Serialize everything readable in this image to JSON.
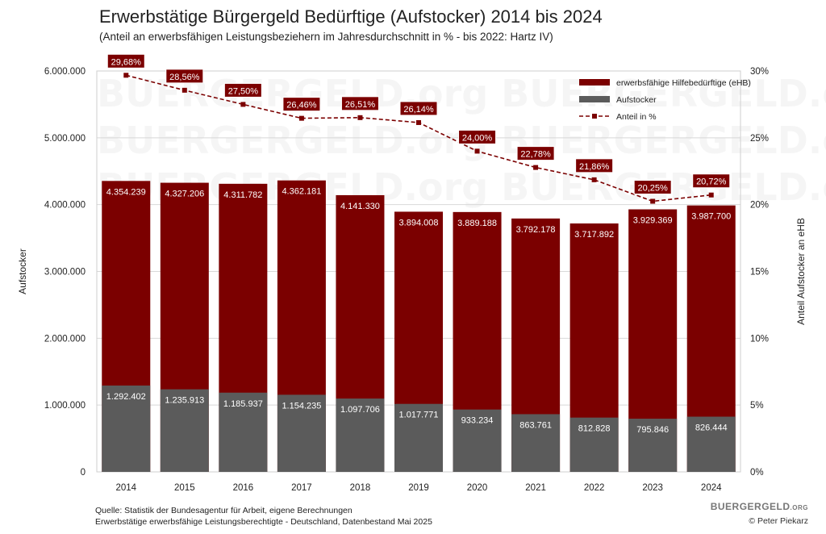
{
  "header": {
    "title": "Erwerbstätige Bürgergeld Bedürftige (Aufstocker) 2014 bis 2024",
    "subtitle": "(Anteil an erwerbsfähigen Leistungsbeziehern im Jahresdurchschnitt in % - bis 2022: Hartz IV)"
  },
  "footer": {
    "source": "Quelle: Statistik der Bundesagentur für Arbeit, eigene Berechnungen",
    "note": "Erwerbstätige erwerbsfähige Leistungsberechtigte - Deutschland, Datenbestand Mai 2025",
    "brand": "BUERGERGELD",
    "brand_suffix": ".ORG",
    "copyright": "© Peter Piekarz"
  },
  "watermark": "BUERGERGELD.org",
  "colors": {
    "ehb": "#7b0000",
    "aufstocker": "#5b5b5b",
    "line": "#7b0000"
  },
  "chart_data": {
    "type": "bar",
    "categories": [
      "2014",
      "2015",
      "2016",
      "2017",
      "2018",
      "2019",
      "2020",
      "2021",
      "2022",
      "2023",
      "2024"
    ],
    "series": [
      {
        "name": "erwerbsfähige Hilfebedürftige (eHB)",
        "kind": "bar",
        "axis": "left",
        "values": [
          4354239,
          4327206,
          4311782,
          4362181,
          4141330,
          3894008,
          3889188,
          3792178,
          3717892,
          3929369,
          3987700
        ],
        "labels": [
          "4.354.239",
          "4.327.206",
          "4.311.782",
          "4.362.181",
          "4.141.330",
          "3.894.008",
          "3.889.188",
          "3.792.178",
          "3.717.892",
          "3.929.369",
          "3.987.700"
        ]
      },
      {
        "name": "Aufstocker",
        "kind": "bar",
        "axis": "left",
        "values": [
          1292402,
          1235913,
          1185937,
          1154235,
          1097706,
          1017771,
          933234,
          863761,
          812828,
          795846,
          826444
        ],
        "labels": [
          "1.292.402",
          "1.235.913",
          "1.185.937",
          "1.154.235",
          "1.097.706",
          "1.017.771",
          "933.234",
          "863.761",
          "812.828",
          "795.846",
          "826.444"
        ]
      },
      {
        "name": "Anteil in %",
        "kind": "line",
        "axis": "right",
        "values": [
          29.68,
          28.56,
          27.5,
          26.46,
          26.51,
          26.14,
          24.0,
          22.78,
          21.86,
          20.25,
          20.72
        ],
        "labels": [
          "29,68%",
          "28,56%",
          "27,50%",
          "26,46%",
          "26,51%",
          "26,14%",
          "24,00%",
          "22,78%",
          "21,86%",
          "20,25%",
          "20,72%"
        ]
      }
    ],
    "ylabel": "Aufstocker",
    "y2label": "Anteil Aufstocker an eHB",
    "ylim": [
      0,
      6000000
    ],
    "y2lim": [
      0,
      30
    ],
    "yticks": [
      0,
      1000000,
      2000000,
      3000000,
      4000000,
      5000000,
      6000000
    ],
    "ytick_labels": [
      "0",
      "1.000.000",
      "2.000.000",
      "3.000.000",
      "4.000.000",
      "5.000.000",
      "6.000.000"
    ],
    "y2ticks": [
      0,
      5,
      10,
      15,
      20,
      25,
      30
    ],
    "y2tick_labels": [
      "0%",
      "5%",
      "10%",
      "15%",
      "20%",
      "25%",
      "30%"
    ],
    "grid": true,
    "legend": "top-right"
  }
}
